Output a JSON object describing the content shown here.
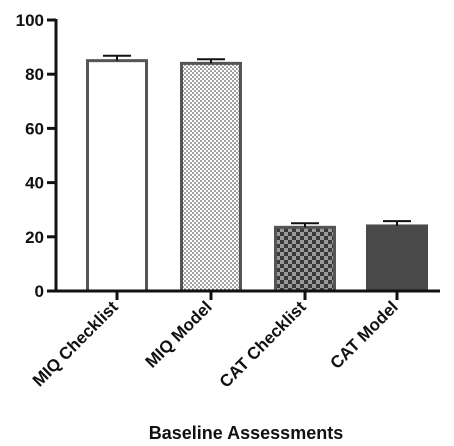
{
  "chart_data": {
    "type": "bar",
    "title": "",
    "xlabel": "Baseline Assessments",
    "ylabel": "",
    "ylim": [
      0,
      100
    ],
    "yticks": [
      0,
      20,
      40,
      60,
      80,
      100
    ],
    "grid": false,
    "legend": "none",
    "categories": [
      "MIQ Checklist",
      "MIQ Model",
      "CAT Checklist",
      "CAT Model"
    ],
    "values": [
      85,
      84,
      23.5,
      24
    ],
    "error_bars": [
      1.8,
      1.5,
      1.5,
      1.8
    ],
    "bar_fills": [
      "open",
      "dotted",
      "checkered",
      "solid"
    ],
    "colors": {
      "axis": "#111111",
      "bar_outline": "#555555",
      "dots": "#333333",
      "checker_dark": "#3a3a3a",
      "checker_light": "#9a9a9a",
      "solid": "#4a4a4a"
    }
  }
}
